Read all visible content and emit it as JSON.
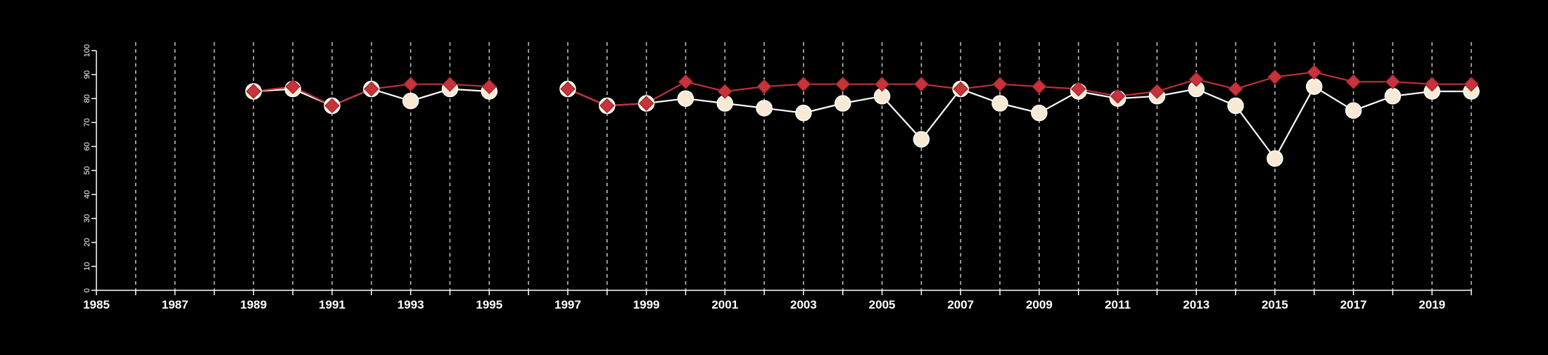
{
  "chart_data": {
    "type": "line",
    "title": "",
    "xlabel": "",
    "ylabel": "",
    "xlim": [
      1985,
      2020
    ],
    "ylim": [
      0,
      100
    ],
    "x_ticks": [
      1985,
      1987,
      1989,
      1991,
      1993,
      1995,
      1997,
      1999,
      2001,
      2003,
      2005,
      2007,
      2009,
      2011,
      2013,
      2015,
      2017,
      2019
    ],
    "y_ticks": [
      0,
      10,
      20,
      30,
      40,
      50,
      60,
      70,
      80,
      90,
      100
    ],
    "vertical_gridlines": "dashed, every year from 1986 to 2020",
    "legend": "none",
    "colors": {
      "background": "#000000",
      "axis": "#ffffff",
      "grid": "#bbbbbb",
      "series_a_line": "#c0303a",
      "series_a_marker": "#c8323b",
      "series_b_line": "#ffffff",
      "series_b_marker": "#f7e9d4"
    },
    "series": [
      {
        "marker": "diamond",
        "points": [
          {
            "x": 1989,
            "y": 83
          },
          {
            "x": 1990,
            "y": 85
          },
          {
            "x": 1991,
            "y": 77
          },
          {
            "x": 1992,
            "y": 84
          },
          {
            "x": 1993,
            "y": 86
          },
          {
            "x": 1994,
            "y": 86
          },
          {
            "x": 1995,
            "y": 85
          },
          {
            "x": 1997,
            "y": 84
          },
          {
            "x": 1998,
            "y": 77
          },
          {
            "x": 1999,
            "y": 78
          },
          {
            "x": 2000,
            "y": 87
          },
          {
            "x": 2001,
            "y": 83
          },
          {
            "x": 2002,
            "y": 85
          },
          {
            "x": 2003,
            "y": 86
          },
          {
            "x": 2004,
            "y": 86
          },
          {
            "x": 2005,
            "y": 86
          },
          {
            "x": 2006,
            "y": 86
          },
          {
            "x": 2007,
            "y": 84
          },
          {
            "x": 2008,
            "y": 86
          },
          {
            "x": 2009,
            "y": 85
          },
          {
            "x": 2010,
            "y": 84
          },
          {
            "x": 2011,
            "y": 81
          },
          {
            "x": 2012,
            "y": 83
          },
          {
            "x": 2013,
            "y": 88
          },
          {
            "x": 2014,
            "y": 84
          },
          {
            "x": 2015,
            "y": 89
          },
          {
            "x": 2016,
            "y": 91
          },
          {
            "x": 2017,
            "y": 87
          },
          {
            "x": 2018,
            "y": 87
          },
          {
            "x": 2019,
            "y": 86
          },
          {
            "x": 2020,
            "y": 86
          }
        ]
      },
      {
        "marker": "circle",
        "points": [
          {
            "x": 1989,
            "y": 83
          },
          {
            "x": 1990,
            "y": 84
          },
          {
            "x": 1991,
            "y": 77
          },
          {
            "x": 1992,
            "y": 84
          },
          {
            "x": 1993,
            "y": 79
          },
          {
            "x": 1994,
            "y": 84
          },
          {
            "x": 1995,
            "y": 83
          },
          {
            "x": 1997,
            "y": 84
          },
          {
            "x": 1998,
            "y": 77
          },
          {
            "x": 1999,
            "y": 78
          },
          {
            "x": 2000,
            "y": 80
          },
          {
            "x": 2001,
            "y": 78
          },
          {
            "x": 2002,
            "y": 76
          },
          {
            "x": 2003,
            "y": 74
          },
          {
            "x": 2004,
            "y": 78
          },
          {
            "x": 2005,
            "y": 81
          },
          {
            "x": 2006,
            "y": 63
          },
          {
            "x": 2007,
            "y": 84
          },
          {
            "x": 2008,
            "y": 78
          },
          {
            "x": 2009,
            "y": 74
          },
          {
            "x": 2010,
            "y": 83
          },
          {
            "x": 2011,
            "y": 80
          },
          {
            "x": 2012,
            "y": 81
          },
          {
            "x": 2013,
            "y": 84
          },
          {
            "x": 2014,
            "y": 77
          },
          {
            "x": 2015,
            "y": 55
          },
          {
            "x": 2016,
            "y": 85
          },
          {
            "x": 2017,
            "y": 75
          },
          {
            "x": 2018,
            "y": 81
          },
          {
            "x": 2019,
            "y": 83
          },
          {
            "x": 2020,
            "y": 83
          }
        ]
      }
    ]
  }
}
